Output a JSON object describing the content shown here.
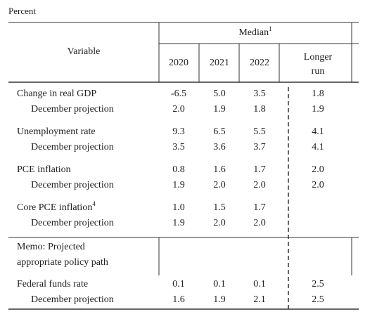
{
  "header": {
    "unit": "Percent",
    "variable": "Variable",
    "median": "Median",
    "median_note": "1",
    "columns": [
      "2020",
      "2021",
      "2022"
    ],
    "longer_run": [
      "Longer",
      "run"
    ]
  },
  "groups": [
    {
      "label": "Change in real GDP",
      "values": [
        "-6.5",
        "5.0",
        "3.5",
        "1.8"
      ],
      "december_label": "December projection",
      "december_values": [
        "2.0",
        "1.9",
        "1.8",
        "1.9"
      ]
    },
    {
      "label": "Unemployment rate",
      "values": [
        "9.3",
        "6.5",
        "5.5",
        "4.1"
      ],
      "december_label": "December projection",
      "december_values": [
        "3.5",
        "3.6",
        "3.7",
        "4.1"
      ]
    },
    {
      "label": "PCE inflation",
      "values": [
        "0.8",
        "1.6",
        "1.7",
        "2.0"
      ],
      "december_label": "December projection",
      "december_values": [
        "1.9",
        "2.0",
        "2.0",
        "2.0"
      ]
    },
    {
      "label": "Core PCE inflation",
      "note": "4",
      "values": [
        "1.0",
        "1.5",
        "1.7"
      ],
      "december_label": "December projection",
      "december_values": [
        "1.9",
        "2.0",
        "2.0"
      ]
    }
  ],
  "memo": [
    "Memo: Projected",
    "appropriate policy path"
  ],
  "policy": {
    "label": "Federal funds rate",
    "values": [
      "0.1",
      "0.1",
      "0.1",
      "2.5"
    ],
    "december_label": "December projection",
    "december_values": [
      "1.6",
      "1.9",
      "2.1",
      "2.5"
    ]
  }
}
